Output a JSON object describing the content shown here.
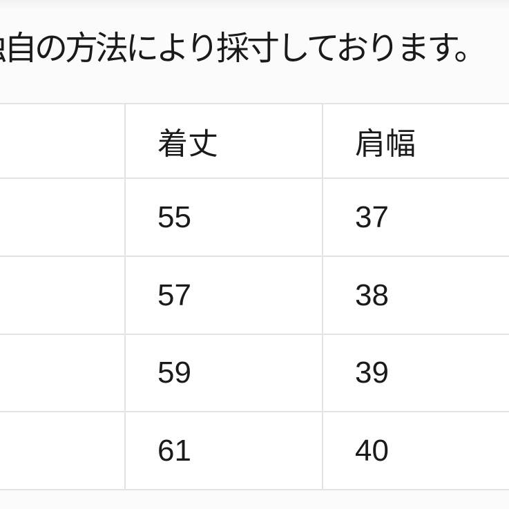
{
  "measurement_note": "独自の方法により採寸しております。",
  "size_chart": {
    "column_headers": [
      "着丈",
      "肩幅"
    ],
    "rows": [
      [
        "55",
        "37"
      ],
      [
        "57",
        "38"
      ],
      [
        "59",
        "39"
      ],
      [
        "61",
        "40"
      ]
    ]
  },
  "colors": {
    "page_bg": "#fbfbfb",
    "cell_bg": "#ffffff",
    "border": "#e3e3e3",
    "text": "#1a1a1a"
  }
}
